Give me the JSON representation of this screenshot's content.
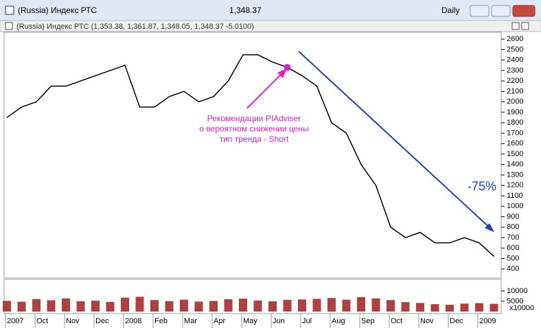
{
  "window": {
    "title": "(Russia) Индекс РТС",
    "last": "1,348.37",
    "period": "Daily"
  },
  "chart_data": [
    {
      "type": "line",
      "title": "(Russia) Индекс РТС (1,353.38, 1,361.87, 1,348.05, 1,348.37 -5.0100)",
      "categories": [
        "2007",
        null,
        "Oct",
        null,
        "Nov",
        null,
        "Dec",
        null,
        "2008",
        null,
        "Feb",
        null,
        "Mar",
        null,
        "Apr",
        null,
        "May",
        null,
        "Jun",
        null,
        "Jul",
        null,
        "Aug",
        null,
        "Sep",
        null,
        "Oct",
        null,
        "Nov",
        null,
        "Dec",
        null,
        "2009",
        null
      ],
      "series": [
        {
          "name": "Индекс РТС",
          "color": "#000000",
          "values": [
            1850,
            1950,
            2000,
            2150,
            2150,
            2200,
            2250,
            2300,
            2350,
            1950,
            1950,
            2050,
            2100,
            2000,
            2050,
            2200,
            2450,
            2450,
            2380,
            2330,
            2250,
            2150,
            1800,
            1700,
            1400,
            1200,
            800,
            700,
            750,
            650,
            650,
            700,
            650,
            520
          ]
        }
      ],
      "ylim": [
        320,
        2660
      ],
      "yticks": [
        400,
        500,
        600,
        700,
        800,
        900,
        1000,
        1100,
        1200,
        1300,
        1400,
        1500,
        1600,
        1700,
        1800,
        1900,
        2000,
        2100,
        2200,
        2300,
        2400,
        2500,
        2600
      ],
      "annotations": [
        "Рекомендации PIAdviser",
        "о вероятном снижении цены",
        "тип трeнда - Short",
        "-75%"
      ],
      "signal_index": 19
    },
    {
      "type": "bar",
      "unit_label": "x10000",
      "color": "#b04040",
      "values": [
        5200,
        4800,
        6100,
        5500,
        6400,
        5000,
        5300,
        4700,
        6800,
        7200,
        5600,
        5100,
        5800,
        4900,
        5200,
        6000,
        6300,
        5400,
        5000,
        5700,
        5900,
        6200,
        6600,
        5800,
        7000,
        6400,
        5600,
        4600,
        4200,
        3600,
        3300,
        3900,
        4100,
        3800
      ],
      "ylim": [
        0,
        15000
      ],
      "yticks": [
        5000,
        10000
      ]
    }
  ]
}
